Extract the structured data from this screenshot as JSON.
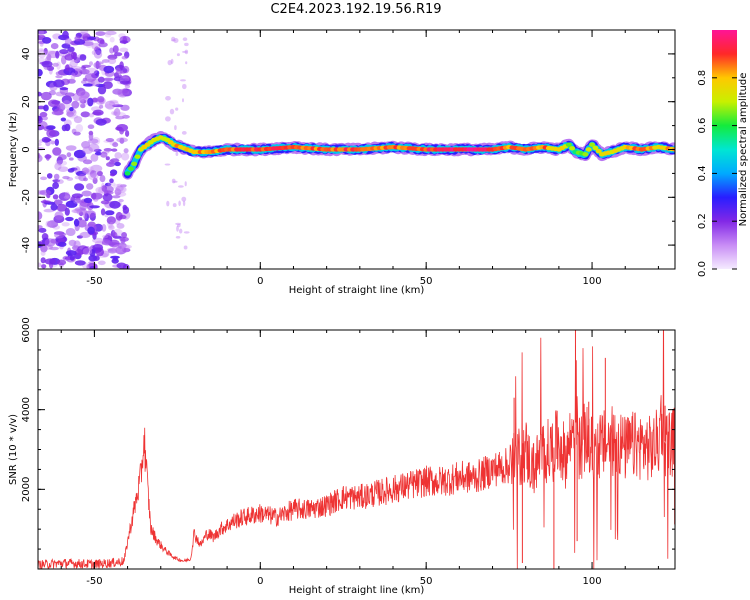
{
  "title": "C2E4.2023.192.19.56.R19",
  "colors": {
    "snr_line": "#ee3333",
    "ridge_stops": [
      "#8a2be2",
      "#2222ff",
      "#00d0ff",
      "#00ee66",
      "#ffee00",
      "#ff2222",
      "#ff1493"
    ],
    "noise": "#9b5ce8"
  },
  "chart_data": [
    {
      "type": "heatmap",
      "xlabel": "Height of straight line (km)",
      "ylabel": "Frequency (Hz)",
      "xlim": [
        -67,
        125
      ],
      "ylim": [
        -50,
        50
      ],
      "xticks": [
        -50,
        0,
        50,
        100
      ],
      "yticks": [
        -40,
        -20,
        0,
        20,
        40
      ],
      "colorbar": {
        "label": "Normalized spectral amplitude",
        "ticks": [
          "0.0",
          "0.2",
          "0.4",
          "0.6",
          "0.8"
        ],
        "tick_values": [
          0,
          0.2,
          0.4,
          0.6,
          0.8
        ],
        "range": [
          0,
          1
        ]
      },
      "noise_region_x": [
        -67,
        -40
      ],
      "ridge": {
        "x": [
          -40,
          -38,
          -36,
          -34,
          -32,
          -30,
          -28,
          -26,
          -24,
          -22,
          -20,
          -15,
          -10,
          -5,
          0,
          10,
          20,
          30,
          40,
          50,
          60,
          70,
          75,
          80,
          85,
          90,
          93,
          95,
          98,
          100,
          103,
          106,
          110,
          115,
          120,
          125
        ],
        "y": [
          -10,
          -6,
          0,
          2,
          4,
          5,
          4,
          2,
          1,
          0,
          -1,
          -1,
          0,
          0,
          0,
          1,
          0,
          0,
          1,
          0,
          0,
          0,
          1,
          0,
          1,
          0,
          2,
          -1,
          -2,
          2,
          -2,
          -1,
          1,
          0,
          1,
          0
        ],
        "amplitude": [
          0.6,
          0.7,
          0.7,
          0.75,
          0.7,
          0.7,
          0.75,
          0.8,
          0.8,
          0.8,
          0.8,
          0.85,
          0.85,
          0.9,
          0.9,
          0.9,
          0.85,
          0.9,
          0.85,
          0.9,
          0.95,
          0.95,
          0.85,
          0.9,
          0.85,
          0.8,
          0.7,
          0.6,
          0.65,
          0.7,
          0.7,
          0.75,
          0.8,
          0.85,
          0.8,
          0.8
        ]
      }
    },
    {
      "type": "line",
      "xlabel": "Height of straight line (km)",
      "ylabel": "SNR (10 * v/v)",
      "xlim": [
        -67,
        125
      ],
      "ylim": [
        0,
        6000
      ],
      "xticks": [
        -50,
        0,
        50,
        100
      ],
      "yticks": [
        2000,
        4000,
        6000
      ],
      "series": [
        {
          "x": [
            -67,
            -60,
            -50,
            -45,
            -41,
            -40,
            -38,
            -36,
            -35,
            -34,
            -33,
            -31,
            -29,
            -27,
            -25,
            -23,
            -21,
            -20,
            -18,
            -16,
            -14,
            -12,
            -10,
            -8,
            -5,
            0,
            5,
            10,
            15,
            20,
            25,
            30,
            35,
            40,
            45,
            50,
            55,
            60,
            65,
            70,
            75,
            78,
            80,
            82,
            85,
            88,
            90,
            92,
            94,
            95,
            96,
            98,
            100,
            103,
            105,
            108,
            110,
            112,
            115,
            118,
            120,
            121,
            122,
            125
          ],
          "y": [
            100,
            150,
            120,
            150,
            200,
            700,
            1500,
            2300,
            3300,
            2100,
            1000,
            700,
            500,
            350,
            250,
            200,
            250,
            900,
            600,
            900,
            800,
            1000,
            1100,
            1200,
            1300,
            1400,
            1300,
            1500,
            1500,
            1600,
            1800,
            1800,
            1900,
            2000,
            2100,
            2200,
            2200,
            2300,
            2300,
            2500,
            2600,
            2800,
            3000,
            2500,
            2900,
            3000,
            3200,
            2800,
            3400,
            4500,
            3000,
            3300,
            3000,
            3100,
            3200,
            3200,
            3000,
            3100,
            3100,
            3000,
            3200,
            3900,
            3200,
            3200
          ]
        }
      ]
    }
  ]
}
